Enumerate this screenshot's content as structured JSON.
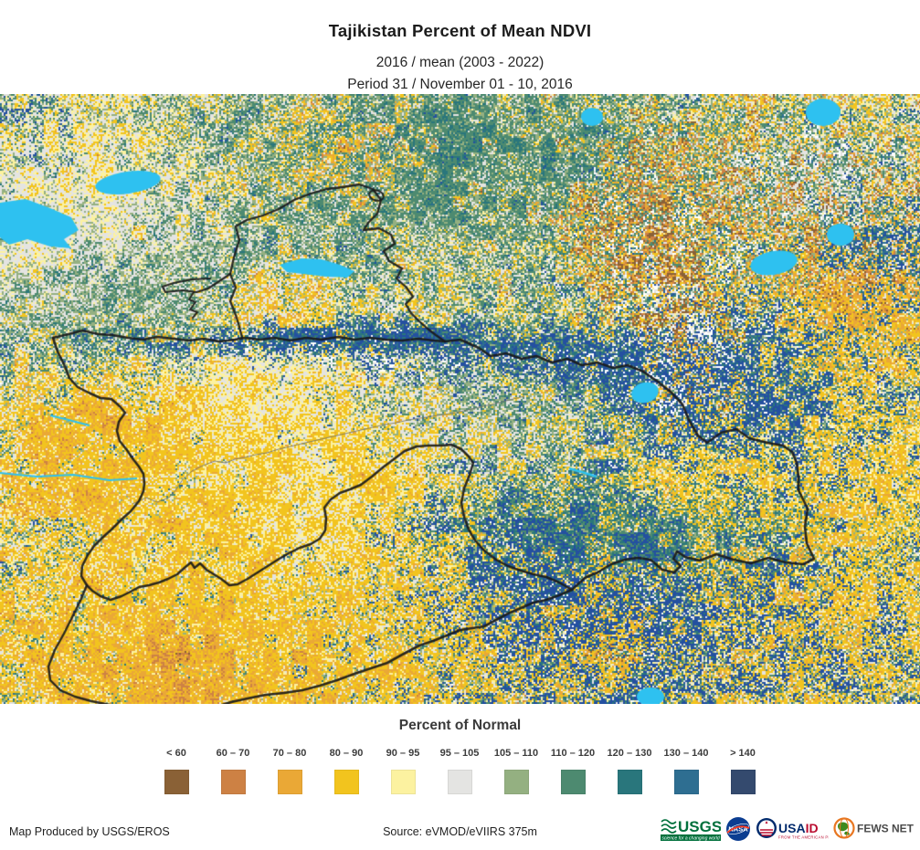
{
  "header": {
    "title": "Tajikistan Percent of Mean NDVI",
    "subtitle_ratio": "2016 / mean (2003 - 2022)",
    "subtitle_period": "Period 31 / November 01 - 10, 2016"
  },
  "legend": {
    "title": "Percent of Normal",
    "classes": [
      {
        "label": "< 60",
        "color": "#8a6136"
      },
      {
        "label": "60 – 70",
        "color": "#cd8144"
      },
      {
        "label": "70 – 80",
        "color": "#eaa836"
      },
      {
        "label": "80 – 90",
        "color": "#f2c41e"
      },
      {
        "label": "90 – 95",
        "color": "#fcf2a0"
      },
      {
        "label": "95 – 105",
        "color": "#e4e4e2"
      },
      {
        "label": "105 – 110",
        "color": "#94b081"
      },
      {
        "label": "110 – 120",
        "color": "#4d8a70"
      },
      {
        "label": "120 – 130",
        "color": "#29767c"
      },
      {
        "label": "130 – 140",
        "color": "#2e6e91"
      },
      {
        "label": "> 140",
        "color": "#344a6e"
      }
    ]
  },
  "map": {
    "water_color": "#2ec1f0",
    "snow_color": "#ffffff",
    "border_color": "#1a1a1a",
    "high_anomaly_blue": "#2450a0"
  },
  "footer": {
    "produced_by": "Map Produced by USGS/EROS",
    "source": "Source: eVMOD/eVIIRS 375m",
    "logos": [
      {
        "name": "usgs-logo",
        "text": "USGS",
        "tagline": "science for a changing world"
      },
      {
        "name": "nasa-logo",
        "text": "NASA"
      },
      {
        "name": "usaid-logo",
        "text": "USAID",
        "tagline": "FROM THE AMERICAN PEOPLE"
      },
      {
        "name": "fewsnet-logo",
        "text": "FEWS NET"
      }
    ]
  }
}
